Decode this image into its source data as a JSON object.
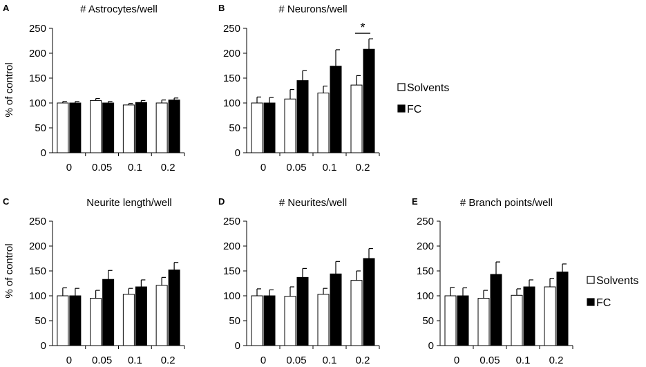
{
  "chart_data": [
    {
      "panel_letter": "A",
      "type": "bar",
      "title": "# Astrocytes/well",
      "ylabel": "% of control",
      "xlabel": "",
      "ylim": [
        0,
        250
      ],
      "yticks": [
        0,
        50,
        100,
        150,
        200,
        250
      ],
      "categories": [
        "0",
        "0.05",
        "0.1",
        "0.2"
      ],
      "series": [
        {
          "name": "Solvents",
          "values": [
            100,
            105,
            96,
            100
          ],
          "errors": [
            3,
            4,
            3,
            6
          ]
        },
        {
          "name": "FC",
          "values": [
            100,
            100,
            101,
            106
          ],
          "errors": [
            3,
            3,
            4,
            4
          ]
        }
      ],
      "annotations": []
    },
    {
      "panel_letter": "B",
      "type": "bar",
      "title": "# Neurons/well",
      "ylabel": "",
      "xlabel": "",
      "ylim": [
        0,
        250
      ],
      "yticks": [
        0,
        50,
        100,
        150,
        200,
        250
      ],
      "categories": [
        "0",
        "0.05",
        "0.1",
        "0.2"
      ],
      "series": [
        {
          "name": "Solvents",
          "values": [
            100,
            108,
            120,
            136
          ],
          "errors": [
            12,
            19,
            14,
            19
          ]
        },
        {
          "name": "FC",
          "values": [
            100,
            145,
            174,
            208
          ],
          "errors": [
            11,
            20,
            33,
            21
          ]
        }
      ],
      "annotations": [
        {
          "text": "*",
          "category": "0.2"
        }
      ]
    },
    {
      "panel_letter": "C",
      "type": "bar",
      "title": "Neurite length/well",
      "ylabel": "% of control",
      "xlabel": "",
      "ylim": [
        0,
        250
      ],
      "yticks": [
        0,
        50,
        100,
        150,
        200,
        250
      ],
      "categories": [
        "0",
        "0.05",
        "0.1",
        "0.2"
      ],
      "series": [
        {
          "name": "Solvents",
          "values": [
            100,
            95,
            103,
            121
          ],
          "errors": [
            16,
            16,
            12,
            16
          ]
        },
        {
          "name": "FC",
          "values": [
            100,
            133,
            118,
            152
          ],
          "errors": [
            15,
            18,
            14,
            15
          ]
        }
      ],
      "annotations": []
    },
    {
      "panel_letter": "D",
      "type": "bar",
      "title": "# Neurites/well",
      "ylabel": "",
      "xlabel": "",
      "ylim": [
        0,
        250
      ],
      "yticks": [
        0,
        50,
        100,
        150,
        200,
        250
      ],
      "categories": [
        "0",
        "0.05",
        "0.1",
        "0.2"
      ],
      "series": [
        {
          "name": "Solvents",
          "values": [
            100,
            99,
            103,
            131
          ],
          "errors": [
            14,
            19,
            12,
            19
          ]
        },
        {
          "name": "FC",
          "values": [
            100,
            137,
            144,
            175
          ],
          "errors": [
            12,
            18,
            25,
            20
          ]
        }
      ],
      "annotations": []
    },
    {
      "panel_letter": "E",
      "type": "bar",
      "title": "# Branch points/well",
      "ylabel": "",
      "xlabel": "",
      "ylim": [
        0,
        250
      ],
      "yticks": [
        0,
        50,
        100,
        150,
        200,
        250
      ],
      "categories": [
        "0",
        "0.05",
        "0.1",
        "0.2"
      ],
      "series": [
        {
          "name": "Solvents",
          "values": [
            100,
            95,
            101,
            118
          ],
          "errors": [
            17,
            16,
            13,
            17
          ]
        },
        {
          "name": "FC",
          "values": [
            100,
            143,
            118,
            148
          ],
          "errors": [
            16,
            25,
            14,
            16
          ]
        }
      ],
      "annotations": []
    }
  ],
  "legends": [
    {
      "items": [
        {
          "label": "Solvents",
          "color": "#ffffff"
        },
        {
          "label": "FC",
          "color": "#000000"
        }
      ]
    },
    {
      "items": [
        {
          "label": "Solvents",
          "color": "#ffffff"
        },
        {
          "label": "FC",
          "color": "#000000"
        }
      ]
    }
  ],
  "colors": {
    "solvents_fill": "#ffffff",
    "fc_fill": "#000000",
    "axis": "#000000"
  }
}
